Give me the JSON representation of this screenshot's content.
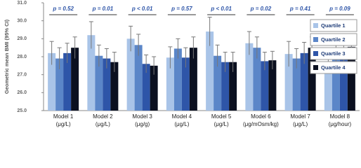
{
  "chart_data": {
    "type": "bar",
    "y_label": "Geometric mean BMI (95% CI)",
    "categories": [
      "Model 1",
      "Model 2",
      "Model 3",
      "Model 4",
      "Model 5",
      "Model 6",
      "Model 7",
      "Model 8"
    ],
    "units": [
      "(μg/L)",
      "(μg/L)",
      "(μg/g)",
      "(μg/L)",
      "(μg/L)",
      "(μg/mOsm/kg)",
      "(μg/L)",
      "(μg/hour)"
    ],
    "p_values": [
      "p = 0.52",
      "p = 0.01",
      "p < 0.01",
      "p = 0.57",
      "p < 0.01",
      "p = 0.02",
      "p = 0.41",
      "p = 0.09"
    ],
    "series": [
      {
        "name": "Quartile 1",
        "color": "#a9c4e8",
        "values": [
          28.2,
          29.2,
          29.0,
          27.95,
          29.4,
          28.75,
          28.15,
          27.75
        ],
        "errors": [
          0.65,
          0.75,
          0.7,
          0.6,
          0.8,
          0.65,
          0.7,
          0.6
        ]
      },
      {
        "name": "Quartile 2",
        "color": "#5b86c8",
        "values": [
          27.9,
          28.05,
          28.65,
          28.45,
          28.05,
          28.5,
          27.9,
          28.35
        ],
        "errors": [
          0.6,
          0.6,
          0.6,
          0.55,
          0.6,
          0.6,
          0.55,
          0.6
        ]
      },
      {
        "name": "Quartile 3",
        "color": "#2e55a8",
        "values": [
          28.2,
          27.9,
          27.6,
          27.95,
          27.7,
          27.75,
          28.2,
          28.15
        ],
        "errors": [
          0.55,
          0.55,
          0.5,
          0.55,
          0.55,
          0.5,
          0.6,
          0.55
        ]
      },
      {
        "name": "Quartile 4",
        "color": "#0b1020",
        "values": [
          28.5,
          27.7,
          27.5,
          28.5,
          27.7,
          27.8,
          28.5,
          28.55
        ],
        "errors": [
          0.6,
          0.55,
          0.5,
          0.6,
          0.55,
          0.5,
          0.6,
          0.6
        ]
      }
    ],
    "ylim": [
      25,
      31
    ],
    "yticks": [
      {
        "value": 25,
        "label": "25.0"
      },
      {
        "value": 26,
        "label": "26.0"
      },
      {
        "value": 27,
        "label": "27.0"
      },
      {
        "value": 28,
        "label": "28.0"
      },
      {
        "value": 29,
        "label": "29.0"
      },
      {
        "value": 30,
        "label": "30.0"
      },
      {
        "value": 31,
        "label": "31.0"
      }
    ],
    "legend": "upper right"
  }
}
